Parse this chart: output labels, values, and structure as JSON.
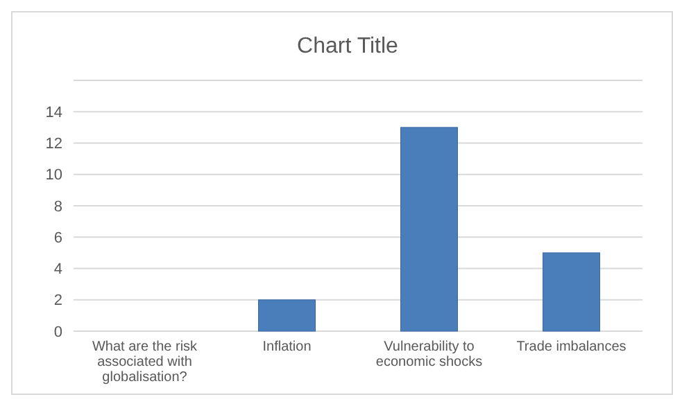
{
  "chart_data": {
    "type": "bar",
    "title": "Chart Title",
    "categories": [
      "What are the risk associated with globalisation?",
      "Inflation",
      "Vulnerability to economic shocks",
      "Trade imbalances"
    ],
    "values": [
      null,
      2,
      13,
      5
    ],
    "color": "#4a7ebb",
    "ylim": [
      0,
      16
    ],
    "yticks": [
      0,
      2,
      4,
      6,
      8,
      10,
      12,
      14,
      {
        "value": 16,
        "label": null
      }
    ],
    "grid": "y"
  }
}
